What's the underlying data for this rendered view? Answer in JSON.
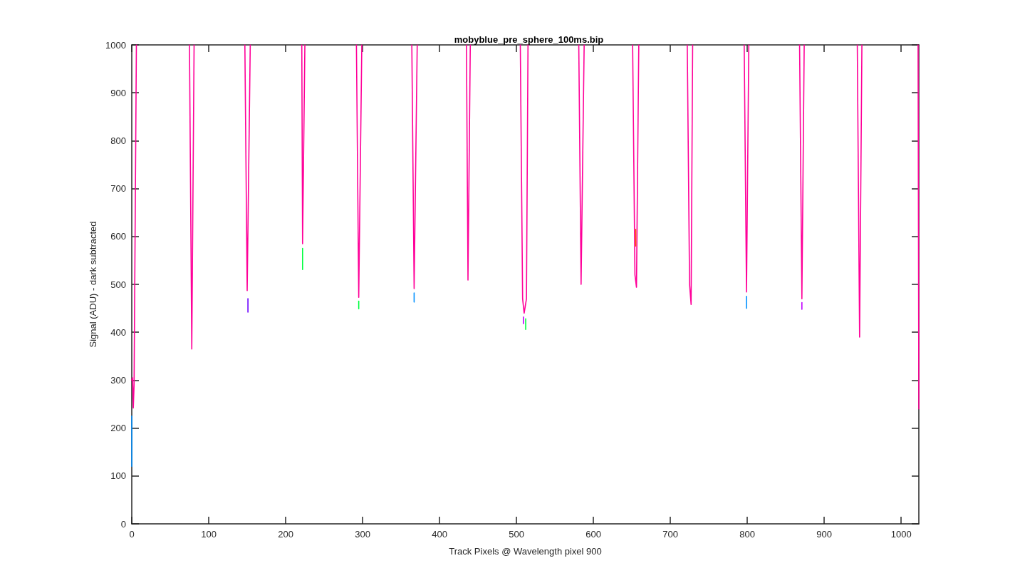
{
  "chart_data": {
    "type": "line",
    "title": "mobyblue_pre_sphere_100ms.bip",
    "xlabel": "Track Pixels @ Wavelength pixel 900",
    "ylabel": "Signal (ADU) - dark subtracted",
    "xlim": [
      0,
      1023
    ],
    "ylim": [
      0,
      1000
    ],
    "xticks": [
      0,
      100,
      200,
      300,
      400,
      500,
      600,
      700,
      800,
      900,
      1000
    ],
    "yticks": [
      0,
      100,
      200,
      300,
      400,
      500,
      600,
      700,
      800,
      900,
      1000
    ],
    "grid": false,
    "marker": "none",
    "line_style": "solid",
    "series": [
      {
        "color": "#ff0099",
        "x": [
          0,
          1,
          2,
          3,
          6
        ],
        "values": [
          300,
          305,
          242,
          290,
          1000
        ]
      },
      {
        "color": "#ff0099",
        "x": [
          75,
          78,
          81
        ],
        "values": [
          1000,
          365,
          1000
        ]
      },
      {
        "color": "#ff0099",
        "x": [
          147,
          150,
          154
        ],
        "values": [
          1000,
          487,
          1000
        ]
      },
      {
        "color": "#ff0099",
        "x": [
          221,
          222,
          225
        ],
        "values": [
          1000,
          585,
          1000
        ]
      },
      {
        "color": "#ff0099",
        "x": [
          292,
          295,
          299
        ],
        "values": [
          1000,
          473,
          1000
        ]
      },
      {
        "color": "#ff0099",
        "x": [
          364,
          367,
          371
        ],
        "values": [
          1000,
          491,
          1000
        ]
      },
      {
        "color": "#ff0099",
        "x": [
          435,
          437,
          440
        ],
        "values": [
          1000,
          509,
          1000
        ]
      },
      {
        "color": "#ff0099",
        "x": [
          505,
          508,
          510,
          513,
          515
        ],
        "values": [
          1000,
          470,
          440,
          470,
          1000
        ]
      },
      {
        "color": "#ff0099",
        "x": [
          581,
          584,
          588
        ],
        "values": [
          1000,
          500,
          1000
        ]
      },
      {
        "color": "#ff0099",
        "x": [
          651,
          654,
          656,
          659
        ],
        "values": [
          1000,
          520,
          494,
          1000
        ]
      },
      {
        "color": "#ff0099",
        "x": [
          722,
          725,
          727,
          729
        ],
        "values": [
          1000,
          500,
          458,
          1000
        ]
      },
      {
        "color": "#ff0099",
        "x": [
          796,
          799,
          802
        ],
        "values": [
          1000,
          484,
          1000
        ]
      },
      {
        "color": "#ff0099",
        "x": [
          868,
          871,
          874
        ],
        "values": [
          1000,
          470,
          1000
        ]
      },
      {
        "color": "#ff0099",
        "x": [
          943,
          946,
          949
        ],
        "values": [
          1000,
          390,
          1000
        ]
      },
      {
        "color": "#ff0099",
        "x": [
          1022,
          1023
        ],
        "values": [
          1000,
          240
        ]
      },
      {
        "color": "#0090ff",
        "x": [
          0,
          0
        ],
        "values": [
          225,
          120
        ]
      },
      {
        "color": "#6a00ff",
        "x": [
          151,
          151
        ],
        "values": [
          470,
          442
        ]
      },
      {
        "color": "#00ff40",
        "x": [
          222,
          222
        ],
        "values": [
          575,
          531
        ]
      },
      {
        "color": "#00ff40",
        "x": [
          295,
          295
        ],
        "values": [
          465,
          449
        ]
      },
      {
        "color": "#0090ff",
        "x": [
          367,
          367
        ],
        "values": [
          482,
          463
        ]
      },
      {
        "color": "#c000ff",
        "x": [
          509,
          509
        ],
        "values": [
          432,
          418
        ]
      },
      {
        "color": "#00ff40",
        "x": [
          512,
          512
        ],
        "values": [
          428,
          406
        ]
      },
      {
        "color": "#ff5000",
        "x": [
          655,
          655
        ],
        "values": [
          615,
          580
        ]
      },
      {
        "color": "#0090ff",
        "x": [
          799,
          799
        ],
        "values": [
          475,
          450
        ]
      },
      {
        "color": "#c000ff",
        "x": [
          871,
          871
        ],
        "values": [
          462,
          448
        ]
      }
    ]
  }
}
